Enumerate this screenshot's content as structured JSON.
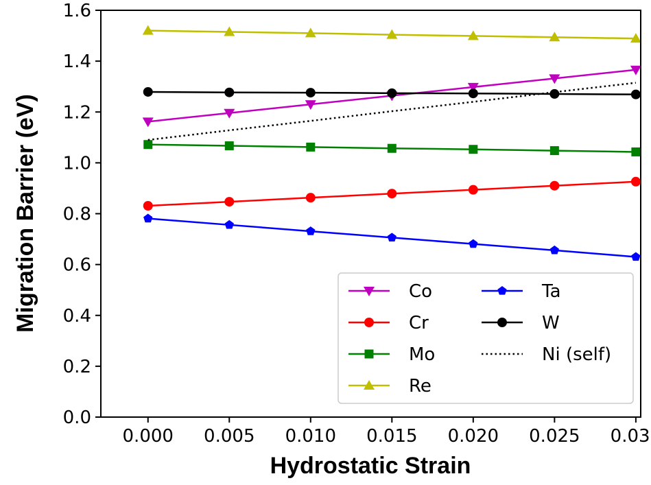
{
  "chart_data": {
    "type": "line",
    "title": "",
    "xlabel": "Hydrostatic Strain",
    "ylabel": "Migration Barrier (eV)",
    "xlim": [
      -0.0029,
      0.0303
    ],
    "ylim": [
      0.0,
      1.6
    ],
    "x": [
      0.0,
      0.005,
      0.01,
      0.015,
      0.02,
      0.025,
      0.03
    ],
    "x_ticks": [
      0.0,
      0.005,
      0.01,
      0.015,
      0.02,
      0.025,
      0.03
    ],
    "x_tick_labels": [
      "0.000",
      "0.005",
      "0.010",
      "0.015",
      "0.020",
      "0.025",
      "0.030"
    ],
    "y_ticks": [
      0.0,
      0.2,
      0.4,
      0.6,
      0.8,
      1.0,
      1.2,
      1.4,
      1.6
    ],
    "y_tick_labels": [
      "0.0",
      "0.2",
      "0.4",
      "0.6",
      "0.8",
      "1.0",
      "1.2",
      "1.4",
      "1.6"
    ],
    "grid": false,
    "legend_position": "lower-right",
    "legend_columns": 2,
    "series": [
      {
        "name": "Co",
        "color": "#bf00bf",
        "marker": "triangle-down",
        "style": "solid",
        "values": [
          1.162,
          1.196,
          1.23,
          1.264,
          1.298,
          1.332,
          1.366
        ]
      },
      {
        "name": "Cr",
        "color": "#ff0000",
        "marker": "circle",
        "style": "solid",
        "values": [
          0.831,
          0.847,
          0.863,
          0.879,
          0.894,
          0.91,
          0.926
        ]
      },
      {
        "name": "Mo",
        "color": "#008000",
        "marker": "square",
        "style": "solid",
        "values": [
          1.072,
          1.067,
          1.062,
          1.057,
          1.053,
          1.048,
          1.043
        ]
      },
      {
        "name": "Re",
        "color": "#bfbf00",
        "marker": "triangle-up",
        "style": "solid",
        "values": [
          1.52,
          1.515,
          1.51,
          1.504,
          1.499,
          1.494,
          1.489
        ]
      },
      {
        "name": "Ta",
        "color": "#0000ff",
        "marker": "pentagon",
        "style": "solid",
        "values": [
          0.781,
          0.756,
          0.731,
          0.706,
          0.681,
          0.656,
          0.63
        ]
      },
      {
        "name": "W",
        "color": "#000000",
        "marker": "circle",
        "style": "solid",
        "values": [
          1.279,
          1.277,
          1.276,
          1.274,
          1.273,
          1.271,
          1.269
        ]
      },
      {
        "name": "Ni (self)",
        "color": "#000000",
        "marker": "none",
        "style": "dotted",
        "values": [
          1.09,
          1.128,
          1.165,
          1.203,
          1.24,
          1.278,
          1.315
        ]
      }
    ]
  }
}
